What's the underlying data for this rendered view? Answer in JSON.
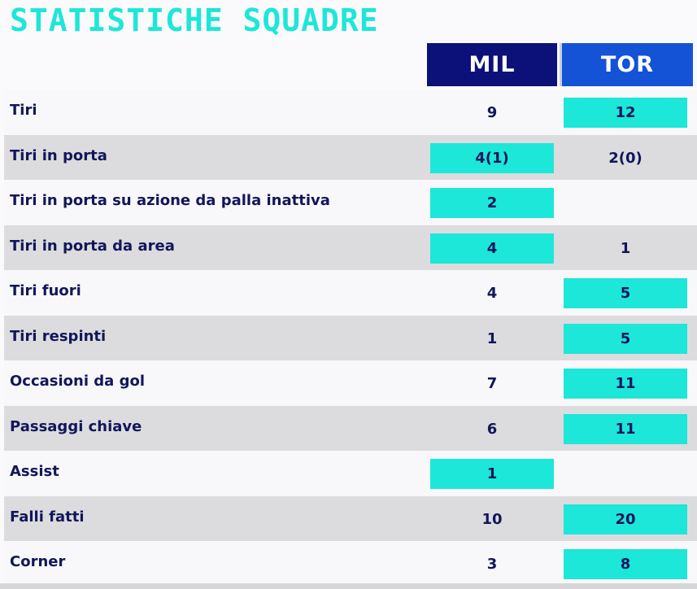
{
  "title": "STATISTICHE SQUADRE",
  "teams": {
    "home": "MIL",
    "away": "TOR"
  },
  "colors": {
    "title": "#1ce7d9",
    "home_header": "#0b1178",
    "away_header": "#1452d6",
    "highlight": "#1ce7d9",
    "text": "#12165a"
  },
  "rows": [
    {
      "label": "Tiri",
      "home": "9",
      "away": "12",
      "highlight": "away"
    },
    {
      "label": "Tiri in porta",
      "home": "4(1)",
      "away": "2(0)",
      "highlight": "home"
    },
    {
      "label": "Tiri in porta su azione da palla inattiva",
      "home": "2",
      "away": "",
      "highlight": "home"
    },
    {
      "label": "Tiri in porta da area",
      "home": "4",
      "away": "1",
      "highlight": "home"
    },
    {
      "label": "Tiri fuori",
      "home": "4",
      "away": "5",
      "highlight": "away"
    },
    {
      "label": "Tiri respinti",
      "home": "1",
      "away": "5",
      "highlight": "away"
    },
    {
      "label": "Occasioni da gol",
      "home": "7",
      "away": "11",
      "highlight": "away"
    },
    {
      "label": "Passaggi chiave",
      "home": "6",
      "away": "11",
      "highlight": "away"
    },
    {
      "label": "Assist",
      "home": "1",
      "away": "",
      "highlight": "home"
    },
    {
      "label": "Falli fatti",
      "home": "10",
      "away": "20",
      "highlight": "away"
    },
    {
      "label": "Corner",
      "home": "3",
      "away": "8",
      "highlight": "away"
    }
  ]
}
